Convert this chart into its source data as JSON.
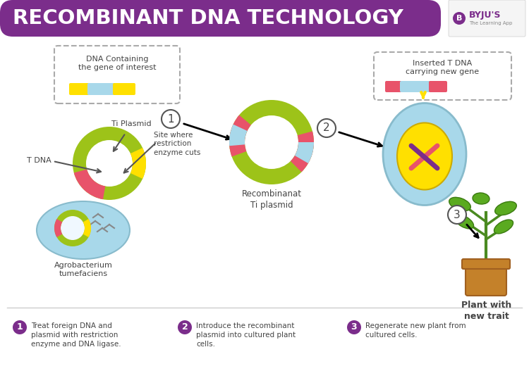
{
  "title": "RECOMBINANT DNA TECHNOLOGY",
  "title_bg_color": "#7B2D8B",
  "title_text_color": "#FFFFFF",
  "background_color": "#FFFFFF",
  "step_circle_color": "#7B2D8B",
  "steps": [
    "Treat foreign DNA and\nplasmid with restriction\nenzyme and DNA ligase.",
    "Introduce the recombinant\nplasmid into cultured plant\ncells.",
    "Regenerate new plant from\ncultured cells."
  ],
  "step_numbers": [
    "1",
    "2",
    "3"
  ],
  "labels": {
    "t_dna": "T DNA",
    "ti_plasmid": "Ti Plasmid",
    "site_restriction": "Site where\nrestriction\nenzyme cuts",
    "agrobacterium": "Agrobacterium\ntumefaciens",
    "dna_gene": "DNA Containing\nthe gene of interest",
    "recombinant": "Recombinanat\nTi plasmid",
    "inserted_tdna": "Inserted T DNA\ncarrying new gene",
    "plant": "Plant with\nnew trait"
  },
  "lime_green": "#9DC319",
  "light_yellow": "#FFFFBB",
  "cyan_light": "#A8D8EA",
  "pink_red": "#E8536A",
  "yellow_bright": "#FFE000",
  "gray_arrow": "#555555",
  "dashed_box_color": "#AAAAAA",
  "text_dark": "#444444",
  "purple": "#7B2D8B"
}
